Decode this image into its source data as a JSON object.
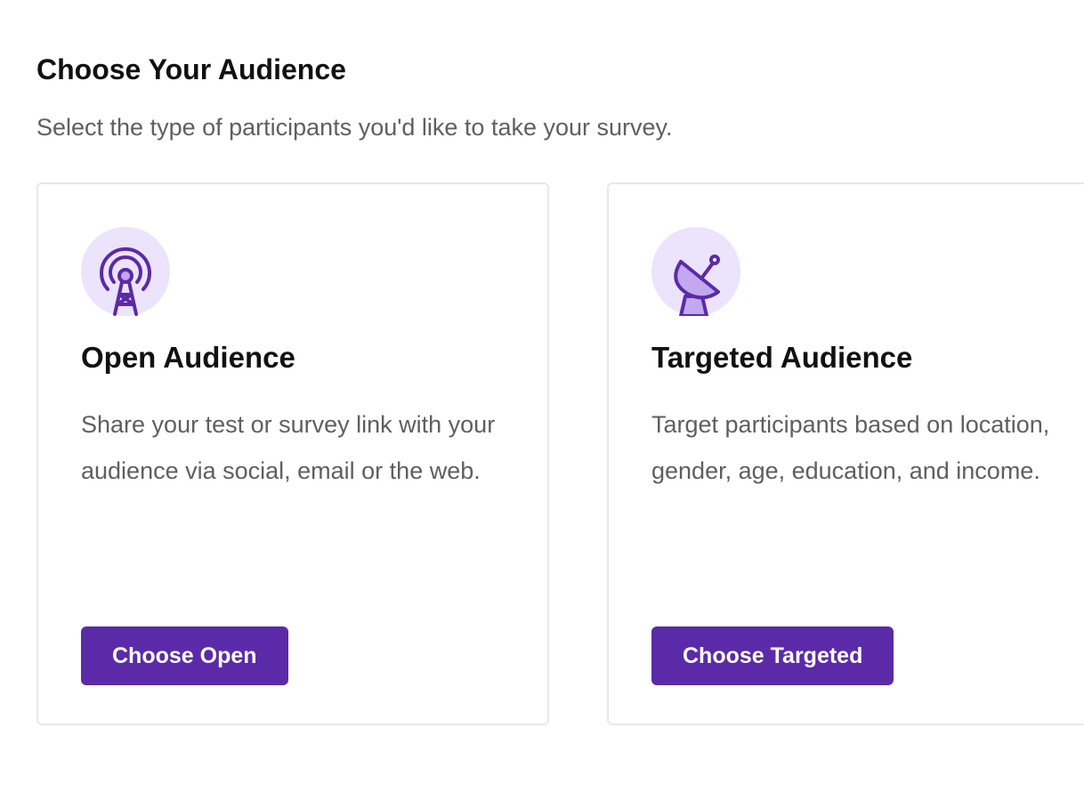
{
  "header": {
    "title": "Choose Your Audience",
    "subtitle": "Select the type of participants you'd like to take your survey."
  },
  "cards": [
    {
      "icon": "radio-tower-icon",
      "title": "Open Audience",
      "description": "Share your test or survey link with your audience via social, email or the web.",
      "button_label": "Choose Open"
    },
    {
      "icon": "satellite-dish-icon",
      "title": "Targeted Audience",
      "description": "Target participants based on location, gender, age, education, and income.",
      "button_label": "Choose Targeted"
    }
  ],
  "colors": {
    "accent": "#5b2aa8",
    "icon_bg": "#ece3fc",
    "icon_fill": "#c1a8ef"
  }
}
